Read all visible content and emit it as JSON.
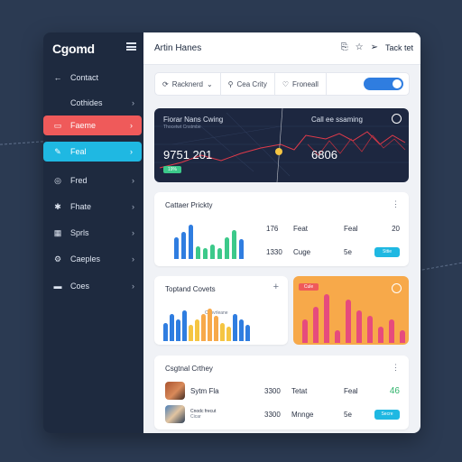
{
  "sidebar": {
    "logo": "Cgomd",
    "items": [
      {
        "label": "Contact",
        "icon": "arrow-left-icon",
        "chevron": false
      },
      {
        "label": "Cothides",
        "icon": "none",
        "chevron": true
      },
      {
        "label": "Faeme",
        "icon": "document-icon",
        "chevron": true,
        "style": "red"
      },
      {
        "label": "Feal",
        "icon": "pencil-icon",
        "chevron": true,
        "style": "cyan"
      },
      {
        "label": "Fred",
        "icon": "globe-icon",
        "chevron": true
      },
      {
        "label": "Fhate",
        "icon": "asterisk-icon",
        "chevron": true
      },
      {
        "label": "Sprls",
        "icon": "grid-icon",
        "chevron": true
      },
      {
        "label": "Caeples",
        "icon": "gear-icon",
        "chevron": true
      },
      {
        "label": "Coes",
        "icon": "folder-icon",
        "chevron": true
      }
    ]
  },
  "header": {
    "title": "Artin Hanes",
    "action_label": "Tack tet"
  },
  "filters": [
    {
      "label": "Racknerd",
      "icon": "refresh-icon"
    },
    {
      "label": "Cea Crity",
      "icon": "user-icon"
    },
    {
      "label": "Froneall",
      "icon": "heart-icon"
    }
  ],
  "hero": {
    "left_title": "Fiorar Nans Cwing",
    "left_subtitle": "Thocetwt Cnstmbe",
    "left_value": "9751 201",
    "left_badge": "19%",
    "right_title": "Call ee ssaming",
    "right_value": "6806"
  },
  "card1": {
    "title": "Cattaer Prickty",
    "rows": [
      {
        "c1": "176",
        "c2": "Feat",
        "c3": "Feal",
        "c4": "20"
      },
      {
        "c1": "1330",
        "c2": "Cuge",
        "c3": "5e",
        "pill": "Sttie"
      }
    ]
  },
  "card2": {
    "title": "Toptand Covets",
    "legend": "Cenvrleane"
  },
  "card3": {
    "badge": "Cule"
  },
  "card4": {
    "title": "Csgtnal Crthey",
    "rows": [
      {
        "name": "Sytm Fla",
        "sub": "",
        "c1": "3300",
        "c2": "Tetat",
        "c3": "Feal",
        "c4": "46"
      },
      {
        "name": "Cnodc frecut",
        "sub": "Cicar",
        "c1": "3300",
        "c2": "Mnnge",
        "c3": "5e",
        "pill": "Secre"
      }
    ]
  },
  "colors": {
    "sidebar": "#1e2a3f",
    "active_red": "#ef5a5a",
    "active_cyan": "#1fb8e2",
    "accent_blue": "#2f7de0",
    "green": "#3cc98a",
    "orange": "#f7a94a"
  }
}
